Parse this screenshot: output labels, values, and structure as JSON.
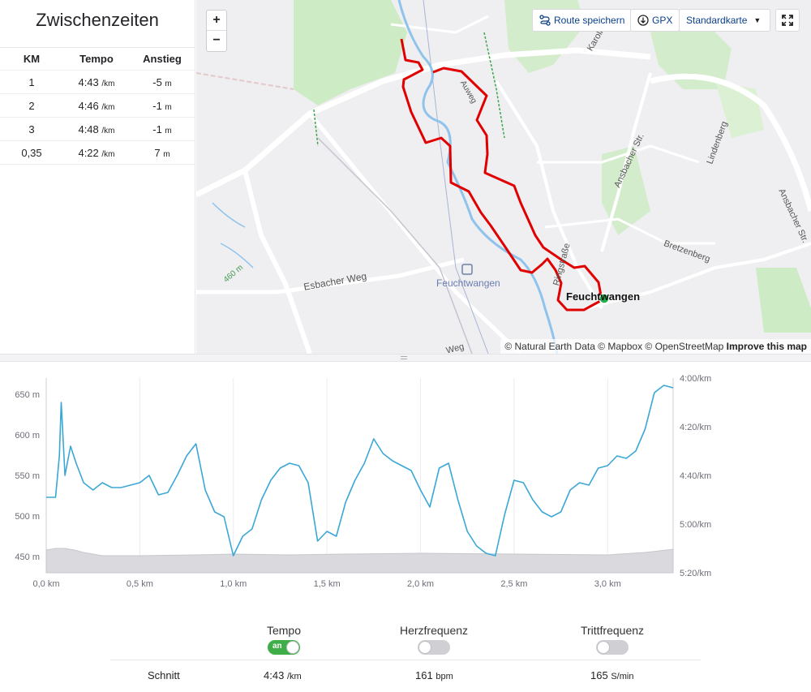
{
  "splits": {
    "title": "Zwischenzeiten",
    "headers": {
      "km": "KM",
      "tempo": "Tempo",
      "climb": "Anstieg"
    },
    "rows": [
      {
        "km": "1",
        "tempo": "4:43",
        "tempo_unit": "/km",
        "climb": "-5",
        "climb_unit": "m"
      },
      {
        "km": "2",
        "tempo": "4:46",
        "tempo_unit": "/km",
        "climb": "-1",
        "climb_unit": "m"
      },
      {
        "km": "3",
        "tempo": "4:48",
        "tempo_unit": "/km",
        "climb": "-1",
        "climb_unit": "m"
      },
      {
        "km": "0,35",
        "tempo": "4:22",
        "tempo_unit": "/km",
        "climb": "7",
        "climb_unit": "m"
      }
    ]
  },
  "map": {
    "zoom_in": "+",
    "zoom_out": "−",
    "save_route": "Route speichern",
    "gpx": "GPX",
    "map_style": "Standardkarte",
    "attribution": "© Natural Earth Data © Mapbox © OpenStreetMap",
    "improve": "Improve this map",
    "labels": {
      "town": "Feuchtwangen",
      "station": "Feuchtwangen",
      "esbacher": "Esbacher Weg",
      "ansbacher1": "Ansbacher Str.",
      "ansbacher2": "Ansbacher Str.",
      "lindenberg": "Lindenberg",
      "bretzenberg": "Bretzenberg",
      "ringstrasse": "Ringstraße",
      "elevation": "460 m",
      "karoli": "Karoli",
      "auweg": "Auweg",
      "weg": "Weg"
    },
    "route_color": "#e00000",
    "marker_color": "#22b14c"
  },
  "chart_data": {
    "type": "area",
    "x_unit": "km",
    "x_ticks": [
      "0,0 km",
      "0,5 km",
      "1,0 km",
      "1,5 km",
      "2,0 km",
      "2,5 km",
      "3,0 km"
    ],
    "x_tick_values": [
      0,
      0.5,
      1.0,
      1.5,
      2.0,
      2.5,
      3.0
    ],
    "xlim": [
      0,
      3.35
    ],
    "y_left_ticks": [
      "650 m",
      "600 m",
      "550 m",
      "500 m",
      "450 m"
    ],
    "y_left_tick_values": [
      650,
      600,
      550,
      500,
      450
    ],
    "ylim_left": [
      430,
      670
    ],
    "y_right_ticks": [
      "4:00/km",
      "4:20/km",
      "4:40/km",
      "5:00/km",
      "5:20/km"
    ],
    "y_right_tick_values_sec": [
      240,
      260,
      280,
      300,
      320
    ],
    "ylim_right_sec": [
      240,
      320
    ],
    "grid": true,
    "series": [
      {
        "role": "elevation",
        "color": "#d9d9de",
        "x": [
          0,
          0.05,
          0.1,
          0.15,
          0.2,
          0.3,
          0.5,
          0.8,
          1.0,
          1.3,
          1.6,
          2.0,
          2.5,
          3.0,
          3.2,
          3.35
        ],
        "values": [
          458,
          460,
          460,
          458,
          455,
          451,
          451,
          452,
          453,
          452,
          453,
          454,
          453,
          452,
          455,
          459
        ]
      },
      {
        "role": "pace",
        "color": "#3ba7d6",
        "x": [
          0,
          0.05,
          0.07,
          0.08,
          0.1,
          0.13,
          0.16,
          0.2,
          0.25,
          0.3,
          0.35,
          0.4,
          0.45,
          0.5,
          0.55,
          0.6,
          0.65,
          0.7,
          0.75,
          0.8,
          0.85,
          0.9,
          0.95,
          1.0,
          1.05,
          1.1,
          1.15,
          1.2,
          1.25,
          1.3,
          1.35,
          1.4,
          1.45,
          1.5,
          1.55,
          1.6,
          1.65,
          1.7,
          1.75,
          1.8,
          1.85,
          1.9,
          1.95,
          2.0,
          2.05,
          2.1,
          2.15,
          2.2,
          2.25,
          2.3,
          2.35,
          2.4,
          2.45,
          2.5,
          2.55,
          2.6,
          2.65,
          2.7,
          2.75,
          2.8,
          2.85,
          2.9,
          2.95,
          3.0,
          3.05,
          3.1,
          3.15,
          3.2,
          3.25,
          3.3,
          3.35
        ],
        "values": [
          289,
          289,
          272,
          250,
          280,
          268,
          275,
          283,
          286,
          283,
          285,
          285,
          284,
          283,
          280,
          288,
          287,
          280,
          272,
          267,
          286,
          295,
          297,
          313,
          305,
          302,
          290,
          282,
          277,
          275,
          276,
          283,
          307,
          303,
          305,
          291,
          282,
          275,
          265,
          271,
          274,
          276,
          278,
          286,
          293,
          277,
          275,
          290,
          303,
          309,
          312,
          313,
          296,
          282,
          283,
          290,
          295,
          297,
          295,
          286,
          283,
          284,
          277,
          276,
          272,
          273,
          270,
          261,
          246,
          243,
          244
        ]
      }
    ]
  },
  "controls": {
    "tempo": {
      "label": "Tempo",
      "state": "an"
    },
    "hr": {
      "label": "Herzfrequenz"
    },
    "cadence": {
      "label": "Trittfrequenz"
    },
    "avg_label": "Schnitt",
    "avg_tempo": "4:43",
    "avg_tempo_unit": "/km",
    "avg_hr": "161",
    "avg_hr_unit": "bpm",
    "avg_cadence": "165",
    "avg_cadence_unit": "S/min"
  }
}
